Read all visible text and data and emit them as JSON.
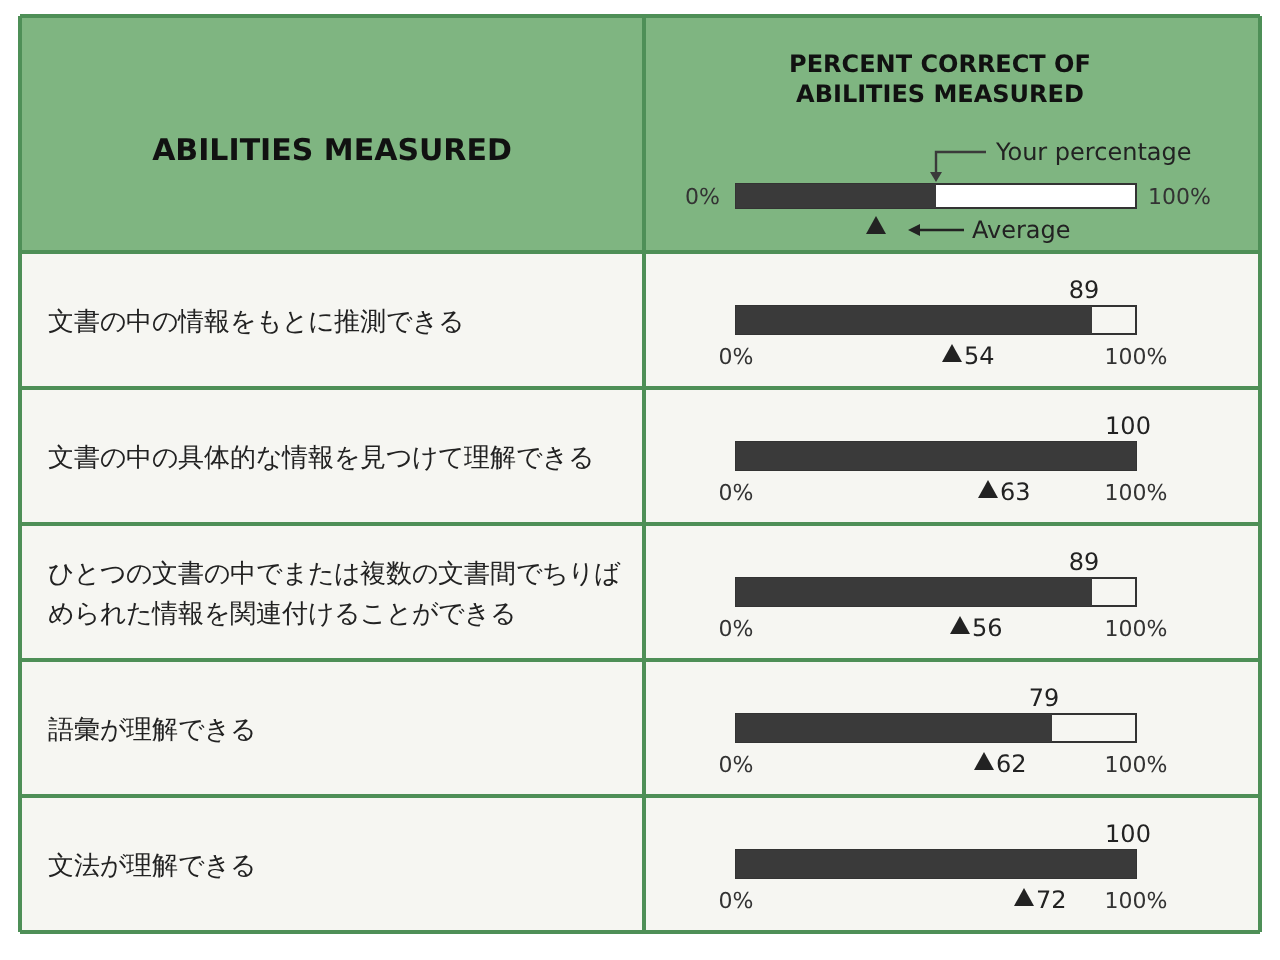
{
  "chart_data": {
    "type": "bar",
    "orientation": "horizontal",
    "title": "PERCENT CORRECT OF ABILITIES MEASURED",
    "ylabel": "ABILITIES MEASURED",
    "categories": [
      "文書の中の情報をもとに推測できる",
      "文書の中の具体的な情報を見つけて理解できる",
      "ひとつの文書の中でまたは複数の文書間でちりばめられた情報を関連付けることができる",
      "語彙が理解できる",
      "文法が理解できる"
    ],
    "series": [
      {
        "name": "Your percentage",
        "color": "#3a3a3a",
        "values": [
          89,
          100,
          89,
          79,
          100
        ]
      },
      {
        "name": "Average",
        "type": "scatter",
        "color": "#222222",
        "values": [
          54,
          63,
          56,
          62,
          72
        ]
      }
    ],
    "marker": "triangle",
    "xlim": [
      0,
      100
    ],
    "xticks": [
      {
        "value": 0,
        "label": "0%"
      },
      {
        "value": 100,
        "label": "100%"
      }
    ],
    "data_labels": true,
    "legend": "top right"
  }
}
